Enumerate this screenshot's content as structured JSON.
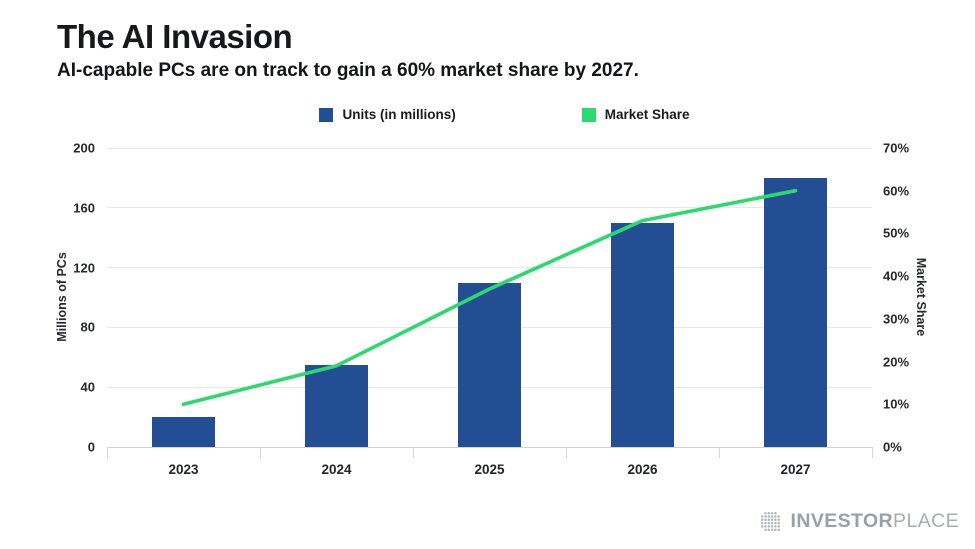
{
  "header": {
    "title": "The AI Invasion",
    "subtitle": "AI-capable PCs are on track to gain a 60% market share by 2027."
  },
  "legend": [
    {
      "label": "Units (in millions)",
      "color": "#234e94"
    },
    {
      "label": "Market Share",
      "color": "#2bd96e"
    }
  ],
  "chart_data": {
    "type": "bar",
    "subtype": "combo-bar-line",
    "categories": [
      "2023",
      "2024",
      "2025",
      "2026",
      "2027"
    ],
    "series": [
      {
        "name": "Units (in millions)",
        "type": "bar",
        "axis": "left",
        "color": "#234e94",
        "values": [
          20,
          55,
          110,
          150,
          180
        ]
      },
      {
        "name": "Market Share",
        "type": "line",
        "axis": "right",
        "color": "#2bd96e",
        "values": [
          10,
          19,
          37,
          53,
          60
        ]
      }
    ],
    "title": "The AI Invasion",
    "subtitle": "AI-capable PCs are on track to gain a 60% market share by 2027.",
    "left_axis": {
      "label": "Millions of PCs",
      "min": 0,
      "max": 200,
      "ticks": [
        0,
        40,
        80,
        120,
        160,
        200
      ]
    },
    "right_axis": {
      "label": "Market Share",
      "min": 0,
      "max": 70,
      "ticks": [
        "0%",
        "10%",
        "20%",
        "30%",
        "40%",
        "50%",
        "60%",
        "70%"
      ]
    },
    "grid": true,
    "legend_position": "top-center"
  },
  "footer": {
    "brand_bold": "INVESTOR",
    "brand_light": "PLACE"
  }
}
